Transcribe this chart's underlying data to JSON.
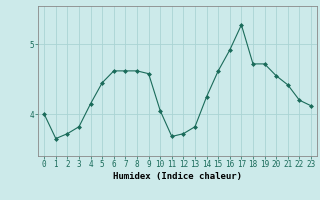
{
  "x": [
    0,
    1,
    2,
    3,
    4,
    5,
    6,
    7,
    8,
    9,
    10,
    11,
    12,
    13,
    14,
    15,
    16,
    17,
    18,
    19,
    20,
    21,
    22,
    23
  ],
  "y": [
    4.0,
    3.65,
    3.72,
    3.82,
    4.15,
    4.45,
    4.62,
    4.62,
    4.62,
    4.58,
    4.05,
    3.68,
    3.72,
    3.82,
    4.25,
    4.62,
    4.92,
    5.28,
    4.72,
    4.72,
    4.55,
    4.42,
    4.2,
    4.12
  ],
  "line_color": "#1a6b5a",
  "marker": "D",
  "marker_size": 2,
  "bg_color": "#cceaea",
  "grid_color": "#aad4d4",
  "xlabel": "Humidex (Indice chaleur)",
  "xlim": [
    -0.5,
    23.5
  ],
  "ylim": [
    3.4,
    5.55
  ],
  "yticks": [
    4,
    5
  ],
  "xtick_labels": [
    "0",
    "1",
    "2",
    "3",
    "4",
    "5",
    "6",
    "7",
    "8",
    "9",
    "10",
    "11",
    "12",
    "13",
    "14",
    "15",
    "16",
    "17",
    "18",
    "19",
    "20",
    "21",
    "22",
    "23"
  ],
  "label_fontsize": 6.5,
  "tick_fontsize": 5.5
}
